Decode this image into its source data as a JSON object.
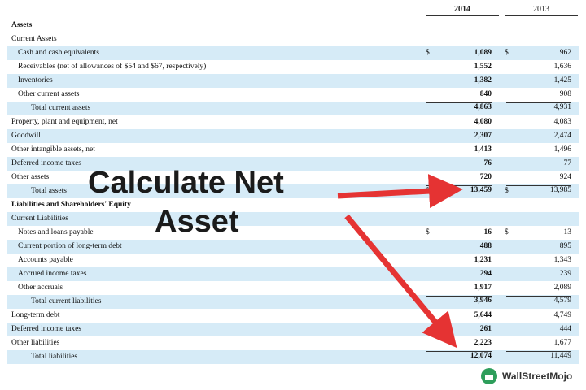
{
  "header": {
    "years": [
      "2014",
      "2013"
    ]
  },
  "table": {
    "rows": [
      {
        "label": "Assets"
      },
      {
        "label": "Current Assets"
      },
      {
        "label": "Cash and cash equivalents",
        "currency": "$",
        "values": [
          "1,089",
          "962"
        ]
      },
      {
        "label": "Receivables (net of allowances of $54 and $67, respectively)",
        "values": [
          "1,552",
          "1,636"
        ]
      },
      {
        "label": "Inventories",
        "values": [
          "1,382",
          "1,425"
        ]
      },
      {
        "label": "Other current assets",
        "values": [
          "840",
          "908"
        ]
      },
      {
        "label": "Total current assets",
        "values": [
          "4,863",
          "4,931"
        ]
      },
      {
        "label": "Property, plant and equipment, net",
        "values": [
          "4,080",
          "4,083"
        ]
      },
      {
        "label": "Goodwill",
        "values": [
          "2,307",
          "2,474"
        ]
      },
      {
        "label": "Other intangible assets, net",
        "values": [
          "1,413",
          "1,496"
        ]
      },
      {
        "label": "Deferred income taxes",
        "values": [
          "76",
          "77"
        ]
      },
      {
        "label": "Other assets",
        "values": [
          "720",
          "924"
        ]
      },
      {
        "label": "Total assets",
        "currency": "$",
        "values": [
          "13,459",
          "13,985"
        ]
      },
      {
        "label": "Liabilities and Shareholders' Equity"
      },
      {
        "label": "Current Liabilities"
      },
      {
        "label": "Notes and loans payable",
        "currency": "$",
        "values": [
          "16",
          "13"
        ]
      },
      {
        "label": "Current portion of long-term debt",
        "values": [
          "488",
          "895"
        ]
      },
      {
        "label": "Accounts payable",
        "values": [
          "1,231",
          "1,343"
        ]
      },
      {
        "label": "Accrued income taxes",
        "values": [
          "294",
          "239"
        ]
      },
      {
        "label": "Other accruals",
        "values": [
          "1,917",
          "2,089"
        ]
      },
      {
        "label": "Total current liabilities",
        "values": [
          "3,946",
          "4,579"
        ]
      },
      {
        "label": "Long-term debt",
        "values": [
          "5,644",
          "4,749"
        ]
      },
      {
        "label": "Deferred income taxes",
        "values": [
          "261",
          "444"
        ]
      },
      {
        "label": "Other liabilities",
        "values": [
          "2,223",
          "1,677"
        ]
      },
      {
        "label": "Total liabilities",
        "values": [
          "12,074",
          "11,449"
        ]
      }
    ]
  },
  "overlay": {
    "lines": [
      "Calculate Net",
      "Asset"
    ]
  },
  "logo": {
    "text": "WallStreetMojo"
  }
}
